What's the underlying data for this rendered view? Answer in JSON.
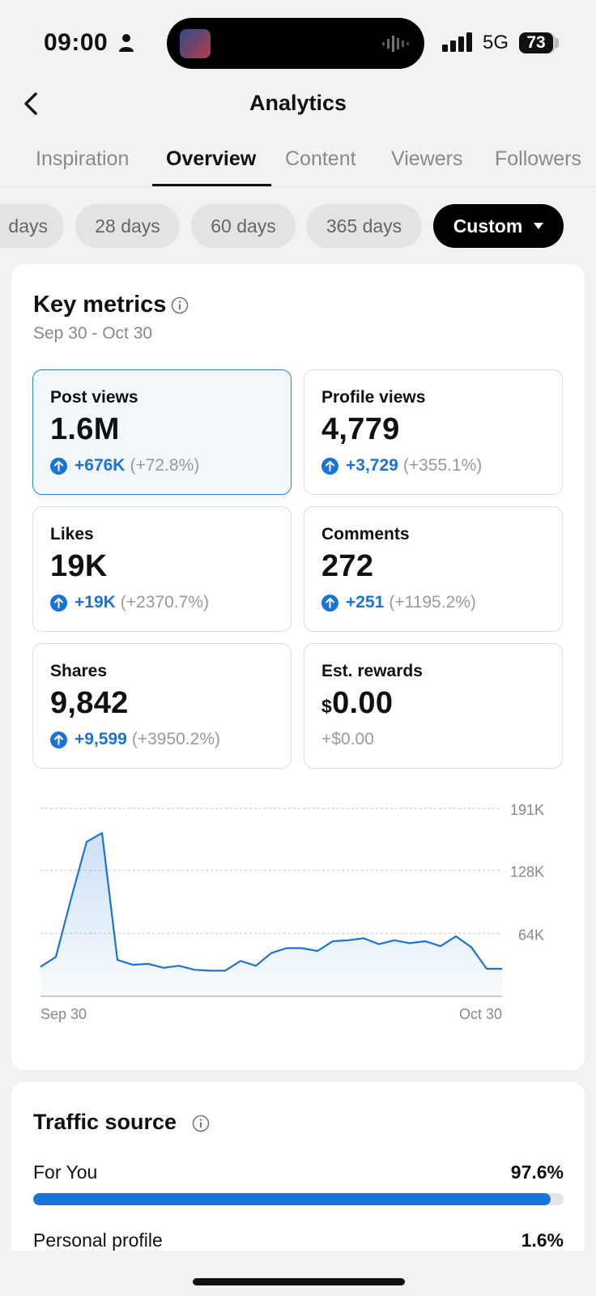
{
  "status": {
    "time": "09:00",
    "network": "5G",
    "battery": "73"
  },
  "header": {
    "title": "Analytics"
  },
  "tabs": [
    "Inspiration",
    "Overview",
    "Content",
    "Viewers",
    "Followers"
  ],
  "ranges": [
    "days",
    "28 days",
    "60 days",
    "365 days",
    "Custom"
  ],
  "key_metrics": {
    "title": "Key metrics",
    "date_range": "Sep 30 - Oct 30",
    "items": [
      {
        "label": "Post views",
        "value": "1.6M",
        "delta": "+676K",
        "pct": "(+72.8%)"
      },
      {
        "label": "Profile views",
        "value": "4,779",
        "delta": "+3,729",
        "pct": "(+355.1%)"
      },
      {
        "label": "Likes",
        "value": "19K",
        "delta": "+19K",
        "pct": "(+2370.7%)"
      },
      {
        "label": "Comments",
        "value": "272",
        "delta": "+251",
        "pct": "(+1195.2%)"
      },
      {
        "label": "Shares",
        "value": "9,842",
        "delta": "+9,599",
        "pct": "(+3950.2%)"
      },
      {
        "label": "Est. rewards",
        "currency": "$",
        "value": "0.00",
        "delta": "+$0.00"
      }
    ]
  },
  "chart_data": {
    "type": "area",
    "title": "Post views",
    "x_start_label": "Sep 30",
    "x_end_label": "Oct 30",
    "y_ticks": [
      "64K",
      "128K",
      "191K"
    ],
    "y_tick_values": [
      64000,
      128000,
      191000
    ],
    "ylim": [
      0,
      191000
    ],
    "values": [
      30000,
      40000,
      100000,
      157000,
      166000,
      37000,
      32000,
      33000,
      29000,
      31000,
      27000,
      26000,
      26000,
      36000,
      31000,
      44000,
      49000,
      49000,
      46000,
      56000,
      57000,
      59000,
      53000,
      57000,
      54000,
      56000,
      51000,
      61000,
      50000,
      28000,
      28000
    ]
  },
  "traffic_source": {
    "title": "Traffic source",
    "items": [
      {
        "label": "For You",
        "pct": "97.6%",
        "fraction": 0.976
      },
      {
        "label": "Personal profile",
        "pct": "1.6%",
        "fraction": 0.016
      }
    ]
  },
  "colors": {
    "accent": "#1a73d8"
  }
}
